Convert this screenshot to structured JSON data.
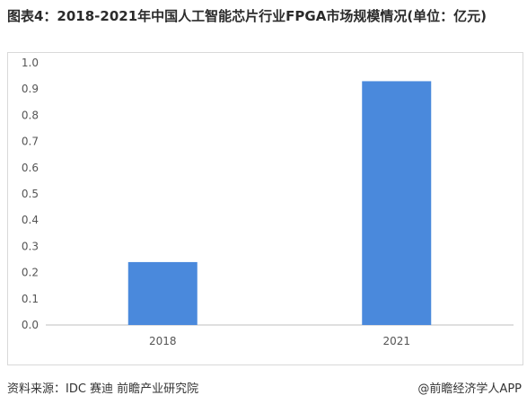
{
  "title": "图表4：2018-2021年中国人工智能芯片行业FPGA市场规模情况(单位：亿元)",
  "footer": {
    "source": "资料来源：IDC 赛迪 前瞻产业研究院",
    "credit": "@前瞻经济学人APP"
  },
  "colors": {
    "bar": "#4a89dc",
    "axis": "#bfbfbf"
  },
  "chart_data": {
    "type": "bar",
    "categories": [
      "2018",
      "2021"
    ],
    "values": [
      0.24,
      0.93
    ],
    "title": "图表4：2018-2021年中国人工智能芯片行业FPGA市场规模情况(单位：亿元)",
    "xlabel": "",
    "ylabel": "",
    "ylim": [
      0,
      1.0
    ],
    "yticks": [
      "0.0",
      "0.1",
      "0.2",
      "0.3",
      "0.4",
      "0.5",
      "0.6",
      "0.7",
      "0.8",
      "0.9",
      "1.0"
    ],
    "grid": false,
    "legend": "none"
  }
}
